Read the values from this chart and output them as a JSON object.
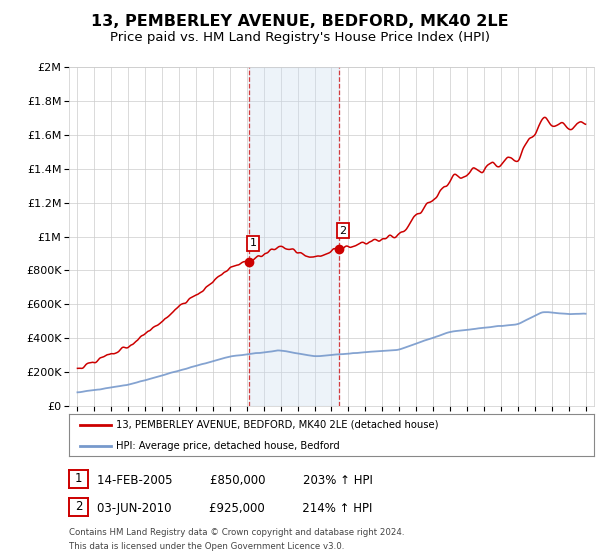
{
  "title": "13, PEMBERLEY AVENUE, BEDFORD, MK40 2LE",
  "subtitle": "Price paid vs. HM Land Registry's House Price Index (HPI)",
  "title_fontsize": 11.5,
  "subtitle_fontsize": 9.5,
  "xlim": [
    1994.5,
    2025.5
  ],
  "ylim": [
    0,
    2000000
  ],
  "yticks": [
    0,
    200000,
    400000,
    600000,
    800000,
    1000000,
    1200000,
    1400000,
    1600000,
    1800000,
    2000000
  ],
  "ytick_labels": [
    "£0",
    "£200K",
    "£400K",
    "£600K",
    "£800K",
    "£1M",
    "£1.2M",
    "£1.4M",
    "£1.6M",
    "£1.8M",
    "£2M"
  ],
  "xticks": [
    1995,
    1996,
    1997,
    1998,
    1999,
    2000,
    2001,
    2002,
    2003,
    2004,
    2005,
    2006,
    2007,
    2008,
    2009,
    2010,
    2011,
    2012,
    2013,
    2014,
    2015,
    2016,
    2017,
    2018,
    2019,
    2020,
    2021,
    2022,
    2023,
    2024,
    2025
  ],
  "sale1_x": 2005.12,
  "sale1_y": 850000,
  "sale1_label": "1",
  "sale2_x": 2010.42,
  "sale2_y": 925000,
  "sale2_label": "2",
  "legend_line1": "13, PEMBERLEY AVENUE, BEDFORD, MK40 2LE (detached house)",
  "legend_line2": "HPI: Average price, detached house, Bedford",
  "footnote_line1": "Contains HM Land Registry data © Crown copyright and database right 2024.",
  "footnote_line2": "This data is licensed under the Open Government Licence v3.0.",
  "table_row1": [
    "1",
    "14-FEB-2005",
    "£850,000",
    "203% ↑ HPI"
  ],
  "table_row2": [
    "2",
    "03-JUN-2010",
    "£925,000",
    "214% ↑ HPI"
  ],
  "red_color": "#cc0000",
  "blue_color": "#7799cc",
  "bg_color": "#ffffff",
  "grid_color": "#cccccc",
  "shade_color": "#ccddf0"
}
